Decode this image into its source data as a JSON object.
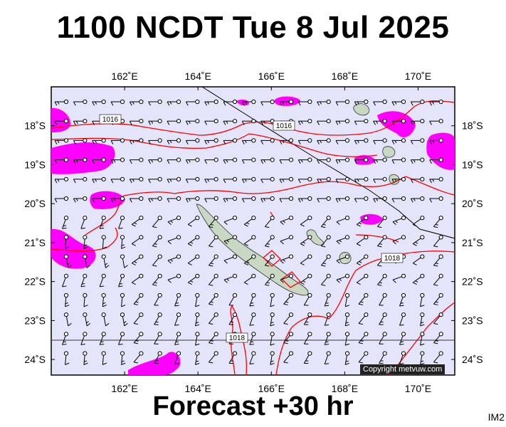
{
  "title": "1100 NCDT Tue 8 Jul 2025",
  "forecast_label": "Forecast +30 hr",
  "image_code": "IM2",
  "copyright": "Copyright metvuw.com",
  "map": {
    "lon_range": [
      160.0,
      171.0
    ],
    "lat_range": [
      -24.4,
      -17.0
    ],
    "lon_ticks": [
      {
        "value": 162,
        "label": "162˚E"
      },
      {
        "value": 164,
        "label": "164˚E"
      },
      {
        "value": 166,
        "label": "166˚E"
      },
      {
        "value": 168,
        "label": "168˚E"
      },
      {
        "value": 170,
        "label": "170˚E"
      }
    ],
    "lat_ticks": [
      {
        "value": -18,
        "label": "18˚S"
      },
      {
        "value": -19,
        "label": "19˚S"
      },
      {
        "value": -20,
        "label": "20˚S"
      },
      {
        "value": -21,
        "label": "21˚S"
      },
      {
        "value": -22,
        "label": "22˚S"
      },
      {
        "value": -23,
        "label": "23˚S"
      },
      {
        "value": -24,
        "label": "24˚S"
      }
    ],
    "isobar_labels": [
      "1016",
      "1016",
      "1018",
      "1018"
    ],
    "colors": {
      "ocean": "#e4e4fa",
      "land": "#c9d8c2",
      "rain": "#ff00ff",
      "isobar_red": "#ff0000",
      "isobar_black": "#000000"
    }
  }
}
